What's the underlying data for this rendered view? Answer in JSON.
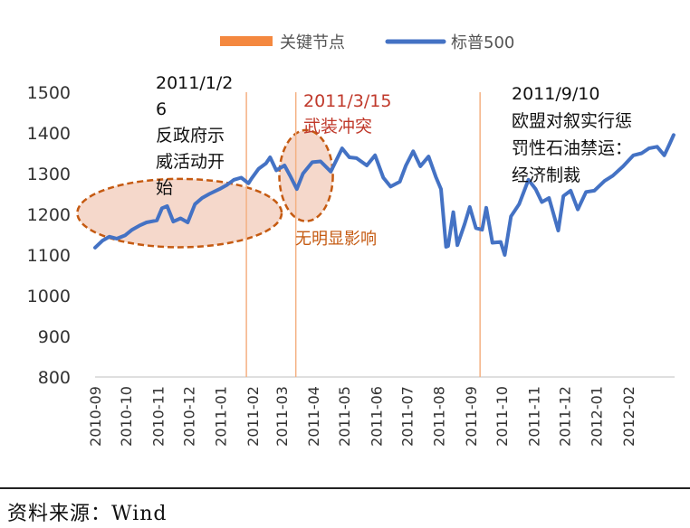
{
  "source": "资料来源：Wind",
  "chart_data": {
    "type": "line",
    "title": "",
    "xlabel": "",
    "ylabel": "",
    "ylim": [
      800,
      1500
    ],
    "yticks": [
      800,
      900,
      1000,
      1100,
      1200,
      1300,
      1400,
      1500
    ],
    "categories": [
      "2010-09",
      "2010-10",
      "2010-11",
      "2010-12",
      "2011-01",
      "2011-02",
      "2011-03",
      "2011-04",
      "2011-05",
      "2011-06",
      "2011-07",
      "2011-08",
      "2011-09",
      "2011-10",
      "2011-11",
      "2011-12",
      "2012-01",
      "2012-02"
    ],
    "legend": {
      "placement": "top",
      "entries": [
        {
          "name": "关键节点",
          "color": "#f4883f"
        },
        {
          "name": "标普500",
          "color": "#4472c4"
        }
      ]
    },
    "series": [
      {
        "name": "标普500",
        "color": "#4472c4",
        "points": [
          [
            "2010-09-01",
            1118
          ],
          [
            "2010-09-08",
            1135
          ],
          [
            "2010-09-15",
            1145
          ],
          [
            "2010-09-22",
            1140
          ],
          [
            "2010-09-30",
            1148
          ],
          [
            "2010-10-07",
            1162
          ],
          [
            "2010-10-14",
            1172
          ],
          [
            "2010-10-21",
            1180
          ],
          [
            "2010-10-31",
            1185
          ],
          [
            "2010-11-05",
            1215
          ],
          [
            "2010-11-10",
            1220
          ],
          [
            "2010-11-16",
            1182
          ],
          [
            "2010-11-23",
            1190
          ],
          [
            "2010-11-30",
            1180
          ],
          [
            "2010-12-07",
            1225
          ],
          [
            "2010-12-14",
            1240
          ],
          [
            "2010-12-21",
            1250
          ],
          [
            "2010-12-31",
            1262
          ],
          [
            "2011-01-07",
            1272
          ],
          [
            "2011-01-14",
            1285
          ],
          [
            "2011-01-21",
            1290
          ],
          [
            "2011-01-28",
            1276
          ],
          [
            "2011-01-31",
            1288
          ],
          [
            "2011-02-07",
            1312
          ],
          [
            "2011-02-14",
            1325
          ],
          [
            "2011-02-18",
            1340
          ],
          [
            "2011-02-24",
            1308
          ],
          [
            "2011-03-04",
            1320
          ],
          [
            "2011-03-10",
            1292
          ],
          [
            "2011-03-16",
            1262
          ],
          [
            "2011-03-22",
            1300
          ],
          [
            "2011-03-31",
            1328
          ],
          [
            "2011-04-08",
            1330
          ],
          [
            "2011-04-18",
            1305
          ],
          [
            "2011-04-29",
            1362
          ],
          [
            "2011-05-06",
            1340
          ],
          [
            "2011-05-13",
            1338
          ],
          [
            "2011-05-23",
            1320
          ],
          [
            "2011-05-31",
            1345
          ],
          [
            "2011-06-08",
            1290
          ],
          [
            "2011-06-15",
            1268
          ],
          [
            "2011-06-24",
            1280
          ],
          [
            "2011-06-30",
            1320
          ],
          [
            "2011-07-07",
            1355
          ],
          [
            "2011-07-14",
            1318
          ],
          [
            "2011-07-22",
            1342
          ],
          [
            "2011-07-29",
            1292
          ],
          [
            "2011-08-03",
            1262
          ],
          [
            "2011-08-08",
            1120
          ],
          [
            "2011-08-10",
            1122
          ],
          [
            "2011-08-15",
            1205
          ],
          [
            "2011-08-19",
            1124
          ],
          [
            "2011-08-26",
            1176
          ],
          [
            "2011-08-31",
            1218
          ],
          [
            "2011-09-06",
            1166
          ],
          [
            "2011-09-12",
            1162
          ],
          [
            "2011-09-16",
            1216
          ],
          [
            "2011-09-22",
            1130
          ],
          [
            "2011-09-30",
            1132
          ],
          [
            "2011-10-04",
            1100
          ],
          [
            "2011-10-10",
            1195
          ],
          [
            "2011-10-18",
            1225
          ],
          [
            "2011-10-27",
            1285
          ],
          [
            "2011-11-03",
            1262
          ],
          [
            "2011-11-09",
            1230
          ],
          [
            "2011-11-16",
            1240
          ],
          [
            "2011-11-25",
            1160
          ],
          [
            "2011-11-30",
            1245
          ],
          [
            "2011-12-07",
            1258
          ],
          [
            "2011-12-14",
            1212
          ],
          [
            "2011-12-22",
            1255
          ],
          [
            "2011-12-30",
            1258
          ],
          [
            "2012-01-09",
            1282
          ],
          [
            "2012-01-17",
            1295
          ],
          [
            "2012-01-27",
            1318
          ],
          [
            "2012-02-06",
            1345
          ],
          [
            "2012-02-14",
            1350
          ],
          [
            "2012-02-21",
            1362
          ],
          [
            "2012-02-29",
            1366
          ],
          [
            "2012-03-07",
            1345
          ],
          [
            "2012-03-12",
            1372
          ],
          [
            "2012-03-16",
            1395
          ]
        ]
      }
    ],
    "vlines": [
      {
        "name": "关键节点",
        "date": "2011-01-26"
      },
      {
        "name": "关键节点",
        "date": "2011-03-15"
      },
      {
        "name": "关键节点",
        "date": "2011-09-10"
      }
    ],
    "annotations": [
      {
        "lines": [
          "2011/1/2",
          "6",
          "反政府示",
          "威活动开",
          "始"
        ],
        "color": "#111111"
      },
      {
        "lines": [
          "2011/3/15",
          "武装冲突"
        ],
        "color": "#c0392b"
      },
      {
        "lines": [
          "无明显影响"
        ],
        "color": "#c55a11"
      },
      {
        "lines": [
          "2011/9/10",
          "欧盟对叙实行惩",
          "罚性石油禁运：",
          "经济制裁"
        ],
        "color": "#111111"
      }
    ],
    "ellipses": [
      {
        "center": [
          "2010-11-22",
          1203
        ],
        "span_days": 84,
        "span_value": 60
      },
      {
        "center": [
          "2011-03-25",
          1295
        ],
        "span_days": 22,
        "span_value": 80
      }
    ]
  }
}
